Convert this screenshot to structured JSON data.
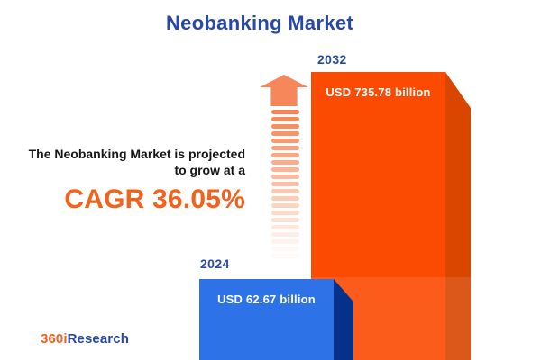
{
  "title": "Neobanking Market",
  "intro": {
    "line1": "The Neobanking Market is projected",
    "line2": "to grow at a",
    "cagr_label": "CAGR 36.05%"
  },
  "bars": {
    "y2024": {
      "year": "2024",
      "value_label": "USD 62.67 billion"
    },
    "y2032": {
      "year": "2032",
      "value_label": "USD 735.78 billion"
    }
  },
  "logo": {
    "prefix": "360i",
    "suffix": "Research"
  },
  "colors": {
    "title_blue": "#2847a8",
    "cagr_orange": "#f4611c",
    "bar_2024_face": "#2d73e7",
    "bar_2024_side": "#04318a",
    "bar_2032_face": "#fb4a02",
    "bar_2032_side": "#d84600",
    "arrow_orange": "#f6875b"
  },
  "chart_data": {
    "type": "bar",
    "title": "Neobanking Market",
    "categories": [
      "2024",
      "2032"
    ],
    "values": [
      62.67,
      735.78
    ],
    "unit": "USD billion",
    "value_labels": [
      "USD 62.67 billion",
      "USD 735.78 billion"
    ],
    "cagr_percent": 36.05,
    "annotation": "The Neobanking Market is projected to grow at a CAGR 36.05%",
    "legend_position": "none",
    "grid": false,
    "axis_labels": "none"
  }
}
